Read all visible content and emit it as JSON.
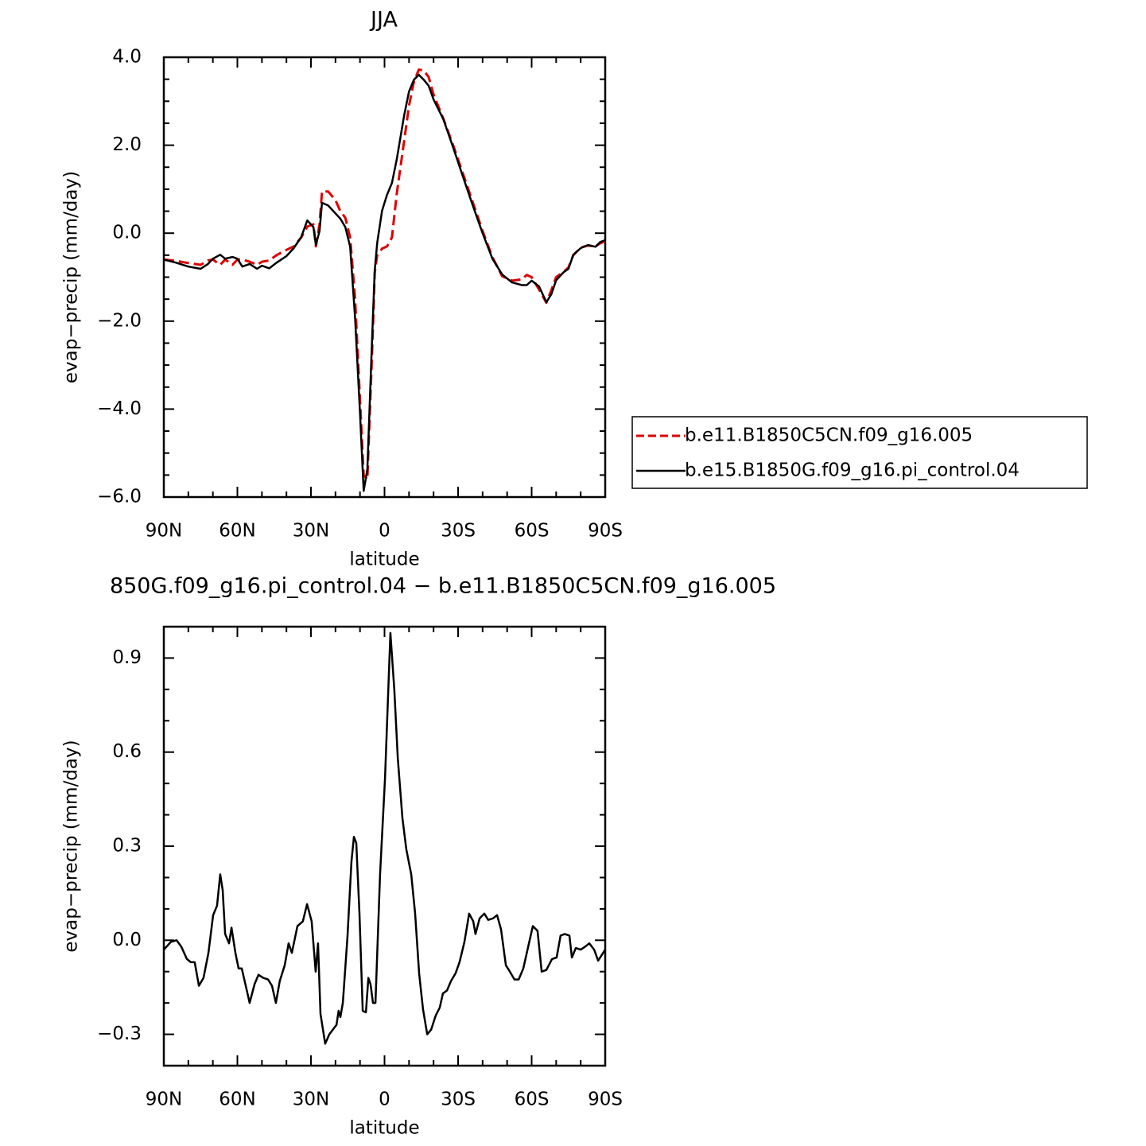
{
  "chart_data": [
    {
      "type": "line",
      "title": "JJA",
      "xlabel": "latitude",
      "ylabel": "evap−precip (mm/day)",
      "x": [
        90,
        85,
        80,
        75,
        72,
        70,
        67,
        65,
        62,
        60,
        58,
        55,
        52,
        50,
        47,
        44,
        40,
        37,
        34,
        31.5,
        29,
        28,
        26.5,
        25.5,
        23,
        20,
        18,
        16,
        14,
        12,
        10,
        8.5,
        7,
        5,
        4,
        3,
        1,
        -1,
        -3,
        -5,
        -8,
        -10,
        -12,
        -14,
        -16,
        -18,
        -20,
        -24,
        -28,
        -32,
        -36,
        -40,
        -44,
        -48,
        -52,
        -56,
        -58,
        -60,
        -63,
        -66,
        -68,
        -70,
        -73,
        -75,
        -77,
        -80,
        -83,
        -86,
        -88,
        -90
      ],
      "series": [
        {
          "name": "b.e11.B1850C5CN.f09_g16.005",
          "color": "#e00000",
          "dashed": true,
          "values": [
            -0.6,
            -0.63,
            -0.68,
            -0.72,
            -0.62,
            -0.6,
            -0.72,
            -0.6,
            -0.72,
            -0.6,
            -0.6,
            -0.65,
            -0.72,
            -0.65,
            -0.62,
            -0.5,
            -0.38,
            -0.3,
            -0.1,
            0.15,
            0.2,
            -0.3,
            0.2,
            0.95,
            0.95,
            0.75,
            0.5,
            0.35,
            -0.1,
            -1.5,
            -3.8,
            -5.5,
            -5.6,
            -2.6,
            -0.9,
            -0.5,
            -0.35,
            -0.3,
            -0.1,
            0.9,
            2.1,
            2.9,
            3.45,
            3.72,
            3.7,
            3.55,
            3.15,
            2.6,
            2.0,
            1.35,
            0.7,
            0.05,
            -0.55,
            -0.98,
            -1.08,
            -1.05,
            -0.95,
            -1.0,
            -1.28,
            -1.58,
            -1.3,
            -1.0,
            -0.88,
            -0.78,
            -0.5,
            -0.33,
            -0.28,
            -0.3,
            -0.23,
            -0.18
          ]
        },
        {
          "name": "b.e15.B1850G.f09_g16.pi_control.04",
          "color": "#000000",
          "dashed": false,
          "values": [
            -0.6,
            -0.67,
            -0.76,
            -0.81,
            -0.7,
            -0.58,
            -0.49,
            -0.58,
            -0.54,
            -0.58,
            -0.76,
            -0.7,
            -0.81,
            -0.74,
            -0.8,
            -0.67,
            -0.52,
            -0.34,
            -0.09,
            0.29,
            0.14,
            -0.27,
            0.05,
            0.69,
            0.63,
            0.45,
            0.33,
            0.14,
            -0.31,
            -1.93,
            -4.1,
            -5.86,
            -5.37,
            -2.3,
            -0.85,
            -0.22,
            0.51,
            0.87,
            1.14,
            1.68,
            2.68,
            3.22,
            3.49,
            3.6,
            3.49,
            3.35,
            3.04,
            2.59,
            1.95,
            1.28,
            0.63,
            0.0,
            -0.58,
            -0.94,
            -1.12,
            -1.18,
            -1.18,
            -1.08,
            -1.21,
            -1.57,
            -1.39,
            -1.07,
            -0.89,
            -0.81,
            -0.49,
            -0.34,
            -0.27,
            -0.31,
            -0.2,
            -0.16
          ]
        }
      ],
      "xlim": [
        90,
        -90
      ],
      "xticks": [
        {
          "value": 90,
          "label": "90N"
        },
        {
          "value": 60,
          "label": "60N"
        },
        {
          "value": 30,
          "label": "30N"
        },
        0,
        {
          "value": -30,
          "label": "30S"
        },
        {
          "value": -60,
          "label": "60S"
        },
        {
          "value": -90,
          "label": "90S"
        }
      ],
      "xminorticks": [
        80,
        70,
        50,
        40,
        20,
        10,
        -10,
        -20,
        -40,
        -50,
        -70,
        -80
      ],
      "ylim": [
        -6,
        4
      ],
      "yticks": [
        {
          "value": -6,
          "label": "−6.0"
        },
        {
          "value": -4,
          "label": "−4.0"
        },
        {
          "value": -2,
          "label": "−2.0"
        },
        {
          "value": 0,
          "label": "0.0"
        },
        {
          "value": 2,
          "label": "2.0"
        },
        {
          "value": 4,
          "label": "4.0"
        }
      ],
      "yminorticks": [
        -5.5,
        -5,
        -4.5,
        -3.5,
        -3,
        -2.5,
        -1.5,
        -1,
        -0.5,
        0.5,
        1,
        1.5,
        2.5,
        3,
        3.5
      ],
      "legend": "right"
    },
    {
      "type": "line",
      "title": "850G.f09_g16.pi_control.04 − b.e11.B1850C5CN.f09_g16.005",
      "xlabel": "latitude",
      "ylabel": "evap−precip (mm/day)",
      "x": [
        90,
        87.1,
        84.8,
        82.9,
        80.6,
        79,
        77.4,
        75.7,
        73.8,
        71.8,
        69.9,
        68.3,
        67,
        66,
        65,
        63.4,
        62.4,
        60.8,
        59.5,
        58.2,
        56.6,
        55,
        53,
        51.4,
        49.5,
        47.5,
        45.9,
        44.3,
        42.7,
        40.7,
        39.1,
        37.8,
        35.5,
        33.3,
        31.6,
        29.7,
        28.1,
        27.1,
        26.1,
        24.2,
        22.5,
        20.6,
        19.6,
        18.7,
        18,
        17,
        15.1,
        13.5,
        12.5,
        11.5,
        10.2,
        8.9,
        7.6,
        6.6,
        5.7,
        4.7,
        3.7,
        1.8,
        -0.2,
        -2.4,
        -4,
        -5.4,
        -7.3,
        -8.9,
        -10.9,
        -12.5,
        -14.1,
        -15.7,
        -17.4,
        -19,
        -20.9,
        -22.5,
        -23.8,
        -25.5,
        -27.1,
        -29,
        -30.6,
        -32.6,
        -34.5,
        -36.2,
        -37.1,
        -38.8,
        -40.7,
        -42.3,
        -44.3,
        -45.9,
        -47.5,
        -49.5,
        -51.1,
        -53,
        -54.7,
        -56.6,
        -58.6,
        -60.5,
        -62.4,
        -64.1,
        -66,
        -68.3,
        -70.2,
        -71.8,
        -73.5,
        -75.4,
        -76.4,
        -78,
        -80,
        -81.9,
        -83.5,
        -85.5,
        -87.1,
        -90
      ],
      "series": [
        {
          "color": "#000000",
          "dashed": false,
          "values": [
            -0.03,
            -0.005,
            0.0,
            -0.02,
            -0.06,
            -0.07,
            -0.07,
            -0.145,
            -0.12,
            -0.04,
            0.08,
            0.11,
            0.21,
            0.16,
            0.02,
            -0.01,
            0.04,
            -0.04,
            -0.09,
            -0.09,
            -0.145,
            -0.2,
            -0.14,
            -0.11,
            -0.12,
            -0.125,
            -0.145,
            -0.2,
            -0.13,
            -0.08,
            -0.01,
            -0.04,
            0.045,
            0.06,
            0.115,
            0.06,
            -0.1,
            -0.01,
            -0.235,
            -0.33,
            -0.3,
            -0.28,
            -0.27,
            -0.225,
            -0.245,
            -0.2,
            0.01,
            0.25,
            0.33,
            0.31,
            0.085,
            -0.225,
            -0.23,
            -0.12,
            -0.14,
            -0.2,
            -0.2,
            0.21,
            0.515,
            0.98,
            0.8,
            0.58,
            0.39,
            0.29,
            0.21,
            0.085,
            -0.105,
            -0.22,
            -0.3,
            -0.285,
            -0.24,
            -0.215,
            -0.17,
            -0.16,
            -0.13,
            -0.105,
            -0.07,
            -0.005,
            0.085,
            0.06,
            0.02,
            0.07,
            0.085,
            0.065,
            0.07,
            0.08,
            0.035,
            -0.08,
            -0.1,
            -0.125,
            -0.125,
            -0.09,
            -0.02,
            0.045,
            0.03,
            -0.1,
            -0.095,
            -0.06,
            -0.055,
            0.015,
            0.02,
            0.015,
            -0.055,
            -0.025,
            -0.03,
            -0.02,
            -0.01,
            -0.03,
            -0.065,
            -0.03
          ]
        }
      ],
      "xlim": [
        90,
        -90
      ],
      "xticks": [
        {
          "value": 90,
          "label": "90N"
        },
        {
          "value": 60,
          "label": "60N"
        },
        {
          "value": 30,
          "label": "30N"
        },
        0,
        {
          "value": -30,
          "label": "30S"
        },
        {
          "value": -60,
          "label": "60S"
        },
        {
          "value": -90,
          "label": "90S"
        }
      ],
      "xminorticks": [
        80,
        70,
        50,
        40,
        20,
        10,
        -10,
        -20,
        -40,
        -50,
        -70,
        -80
      ],
      "ylim": [
        -0.4,
        1.0
      ],
      "yticks": [
        {
          "value": -0.3,
          "label": "−0.3"
        },
        {
          "value": 0,
          "label": "0.0"
        },
        {
          "value": 0.3,
          "label": "0.3"
        },
        {
          "value": 0.6,
          "label": "0.6"
        },
        {
          "value": 0.9,
          "label": "0.9"
        }
      ],
      "yminorticks": [
        -0.4,
        -0.2,
        -0.1,
        0.1,
        0.2,
        0.4,
        0.5,
        0.7,
        0.8,
        1.0
      ]
    }
  ]
}
